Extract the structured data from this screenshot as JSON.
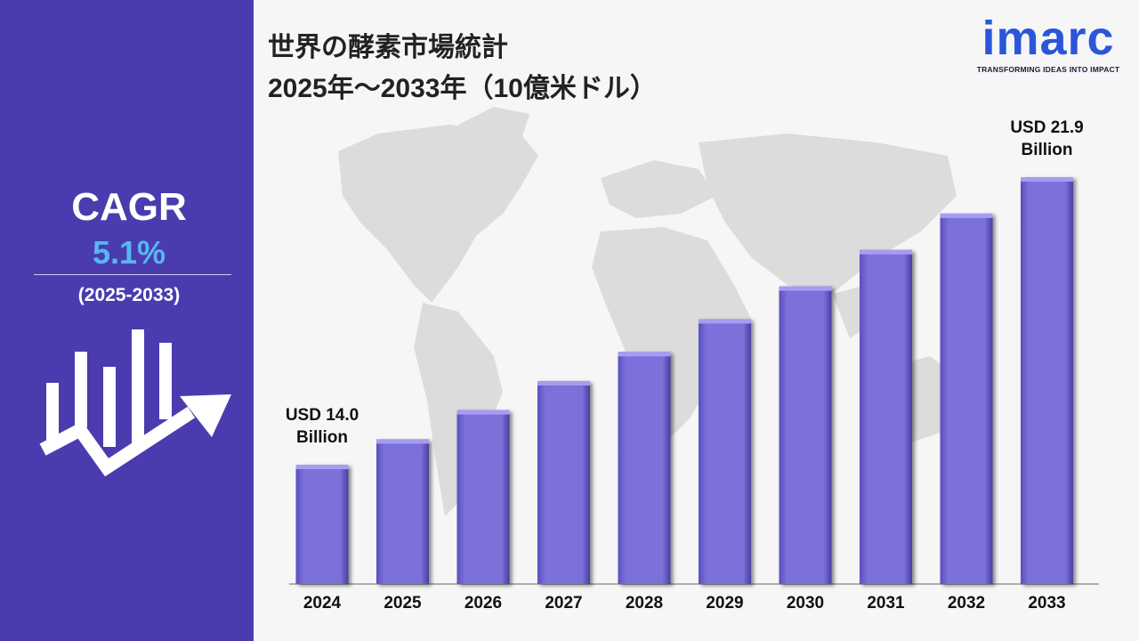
{
  "sidebar": {
    "cagr_label": "CAGR",
    "cagr_value": "5.1%",
    "cagr_period": "(2025-2033)",
    "icon": "growth-chart-arrow-icon"
  },
  "header": {
    "title_line1": "世界の酵素市場統計",
    "title_line2": "2025年～2033年（10億米ドル）"
  },
  "logo": {
    "text": "imarc",
    "tagline": "TRANSFORMING IDEAS INTO IMPACT"
  },
  "colors": {
    "sidebar_bg": "#4a3cae",
    "cagr_value": "#58b7f0",
    "bar_fill": "#7b6fdb",
    "logo": "#2c56d9"
  },
  "chart_data": {
    "type": "bar",
    "title": "世界の酵素市場統計",
    "categories": [
      "2024",
      "2025",
      "2026",
      "2027",
      "2028",
      "2029",
      "2030",
      "2031",
      "2032",
      "2033"
    ],
    "values": [
      14.0,
      14.7,
      15.5,
      16.3,
      17.1,
      18.0,
      18.9,
      19.9,
      20.9,
      21.9
    ],
    "unit": "USD Billion",
    "annotations": [
      {
        "category": "2024",
        "lines": [
          "USD 14.0",
          "Billion"
        ]
      },
      {
        "category": "2033",
        "lines": [
          "USD 21.9",
          "Billion"
        ]
      }
    ],
    "grid": false,
    "legend": "none"
  }
}
